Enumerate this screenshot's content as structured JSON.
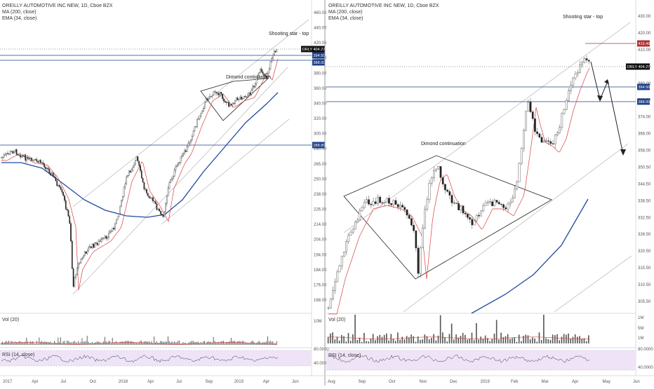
{
  "chart_data": [
    {
      "type": "candlestick",
      "header": [
        "OREILLY AUTOMOTIVE INC NEW, 1D, Cboe BZX",
        "MA (200, close)",
        "EMA (34, close)"
      ],
      "price_ticks": [
        "460.00",
        "440.00",
        "420.00",
        "400.00",
        "380.00",
        "360.00",
        "340.00",
        "320.00",
        "300.00",
        "280.00",
        "265.00",
        "250.00",
        "238.00",
        "226.00",
        "214.00",
        "204.00",
        "194.00",
        "184.00",
        "176.00",
        "168.00"
      ],
      "price_levels": [
        {
          "label": "ORLY",
          "value": "404.27",
          "color": "#111111"
        },
        {
          "label": "",
          "value": "394.50",
          "color": "#1e3f8a"
        },
        {
          "label": "",
          "value": "388.00",
          "color": "#1e3f8a"
        },
        {
          "label": "",
          "value": "288.89",
          "color": "#1e3f8a"
        }
      ],
      "annotations": [
        "Shooting star - top",
        "Dimond continuation"
      ],
      "x_ticks": [
        "2017",
        "Apr",
        "Jul",
        "Oct",
        "2018",
        "Apr",
        "Jul",
        "Sep",
        "2019",
        "Apr",
        "Jun"
      ],
      "volume": {
        "label": "Vol (20)",
        "ticks": [
          "10M"
        ]
      },
      "rsi": {
        "label": "RSI (14, close)",
        "ticks": [
          "80.0000",
          "40.0000"
        ]
      }
    },
    {
      "type": "candlestick",
      "header": [
        "OREILLY AUTOMOTIVE INC NEW, 1D, Cboe BZX",
        "MA (200, close)",
        "EMA (34, close)"
      ],
      "price_ticks": [
        "430.00",
        "420.00",
        "410.00",
        "400.00",
        "390.00",
        "382.00",
        "374.00",
        "366.00",
        "358.00",
        "350.50",
        "344.50",
        "338.50",
        "332.50",
        "326.50",
        "320.50",
        "315.50",
        "310.50",
        "305.50"
      ],
      "price_levels": [
        {
          "label": "",
          "value": "415.49",
          "color": "#b03030"
        },
        {
          "label": "ORLY",
          "value": "404.27",
          "color": "#111111"
        },
        {
          "label": "",
          "value": "394.50",
          "color": "#1e3f8a"
        },
        {
          "label": "",
          "value": "388.00",
          "color": "#1e3f8a"
        }
      ],
      "annotations": [
        "Shooting star - top",
        "Dimond continuation"
      ],
      "x_ticks": [
        "Aug",
        "Sep",
        "Oct",
        "Nov",
        "Dec",
        "2019",
        "Feb",
        "Mar",
        "Apr",
        "May",
        "Jun"
      ],
      "volume": {
        "label": "Vol (20)",
        "ticks": [
          "1M",
          "5M",
          "1M"
        ]
      },
      "rsi": {
        "label": "RSI (14, close)",
        "ticks": [
          "80.0000",
          "40.0000"
        ]
      }
    }
  ]
}
